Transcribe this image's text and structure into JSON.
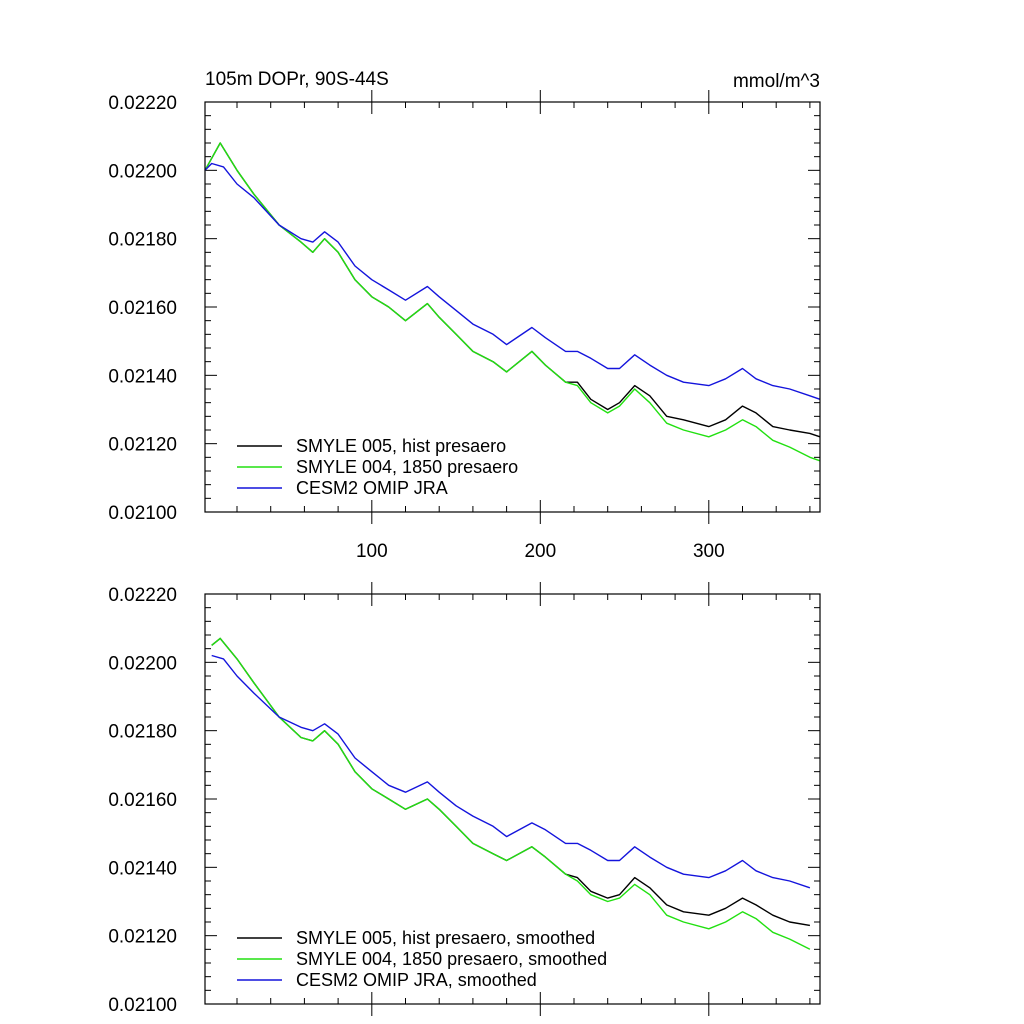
{
  "chart_data": [
    {
      "type": "line",
      "title": "105m DOPr, 90S-44S",
      "units": "mmol/m^3",
      "ylim": [
        0.021,
        0.0222
      ],
      "xlim": [
        1,
        366
      ],
      "yticks": [
        "0.02100",
        "0.02120",
        "0.02140",
        "0.02160",
        "0.02180",
        "0.02200",
        "0.02220"
      ],
      "xticks": [
        "100",
        "200",
        "300"
      ],
      "legend_position": "lower-left",
      "series": [
        {
          "name": "SMYLE 005, hist presaero",
          "color": "#000000",
          "points": [
            [
              1,
              0.022
            ],
            [
              10,
              0.02208
            ],
            [
              20,
              0.022
            ],
            [
              30,
              0.02193
            ],
            [
              45,
              0.02184
            ],
            [
              58,
              0.02179
            ],
            [
              65,
              0.02176
            ],
            [
              72,
              0.0218
            ],
            [
              80,
              0.02176
            ],
            [
              90,
              0.02168
            ],
            [
              100,
              0.02163
            ],
            [
              110,
              0.0216
            ],
            [
              120,
              0.02156
            ],
            [
              133,
              0.02161
            ],
            [
              140,
              0.02157
            ],
            [
              150,
              0.02152
            ],
            [
              160,
              0.02147
            ],
            [
              172,
              0.02144
            ],
            [
              180,
              0.02141
            ],
            [
              195,
              0.02147
            ],
            [
              203,
              0.02143
            ],
            [
              215,
              0.02138
            ],
            [
              222,
              0.02138
            ],
            [
              230,
              0.02133
            ],
            [
              240,
              0.0213
            ],
            [
              247,
              0.02132
            ],
            [
              256,
              0.02137
            ],
            [
              265,
              0.02134
            ],
            [
              275,
              0.02128
            ],
            [
              285,
              0.02127
            ],
            [
              300,
              0.02125
            ],
            [
              310,
              0.02127
            ],
            [
              320,
              0.02131
            ],
            [
              328,
              0.02129
            ],
            [
              338,
              0.02125
            ],
            [
              348,
              0.02124
            ],
            [
              360,
              0.02123
            ],
            [
              366,
              0.02122
            ]
          ]
        },
        {
          "name": "SMYLE 004, 1850 presaero",
          "color": "#22e011",
          "points": [
            [
              1,
              0.022
            ],
            [
              10,
              0.02208
            ],
            [
              20,
              0.022
            ],
            [
              30,
              0.02193
            ],
            [
              45,
              0.02184
            ],
            [
              58,
              0.02179
            ],
            [
              65,
              0.02176
            ],
            [
              72,
              0.0218
            ],
            [
              80,
              0.02176
            ],
            [
              90,
              0.02168
            ],
            [
              100,
              0.02163
            ],
            [
              110,
              0.0216
            ],
            [
              120,
              0.02156
            ],
            [
              133,
              0.02161
            ],
            [
              140,
              0.02157
            ],
            [
              150,
              0.02152
            ],
            [
              160,
              0.02147
            ],
            [
              172,
              0.02144
            ],
            [
              180,
              0.02141
            ],
            [
              195,
              0.02147
            ],
            [
              203,
              0.02143
            ],
            [
              215,
              0.02138
            ],
            [
              222,
              0.02137
            ],
            [
              230,
              0.02132
            ],
            [
              240,
              0.02129
            ],
            [
              247,
              0.02131
            ],
            [
              256,
              0.02136
            ],
            [
              265,
              0.02132
            ],
            [
              275,
              0.02126
            ],
            [
              285,
              0.02124
            ],
            [
              300,
              0.02122
            ],
            [
              310,
              0.02124
            ],
            [
              320,
              0.02127
            ],
            [
              328,
              0.02125
            ],
            [
              338,
              0.02121
            ],
            [
              348,
              0.02119
            ],
            [
              360,
              0.02116
            ],
            [
              366,
              0.02115
            ]
          ]
        },
        {
          "name": "CESM2 OMIP JRA",
          "color": "#1414dc",
          "points": [
            [
              1,
              0.022
            ],
            [
              5,
              0.02202
            ],
            [
              12,
              0.02201
            ],
            [
              20,
              0.02196
            ],
            [
              30,
              0.02192
            ],
            [
              45,
              0.02184
            ],
            [
              58,
              0.0218
            ],
            [
              65,
              0.02179
            ],
            [
              72,
              0.02182
            ],
            [
              80,
              0.02179
            ],
            [
              90,
              0.02172
            ],
            [
              100,
              0.02168
            ],
            [
              110,
              0.02165
            ],
            [
              120,
              0.02162
            ],
            [
              133,
              0.02166
            ],
            [
              140,
              0.02163
            ],
            [
              150,
              0.02159
            ],
            [
              160,
              0.02155
            ],
            [
              172,
              0.02152
            ],
            [
              180,
              0.02149
            ],
            [
              195,
              0.02154
            ],
            [
              203,
              0.02151
            ],
            [
              215,
              0.02147
            ],
            [
              222,
              0.02147
            ],
            [
              230,
              0.02145
            ],
            [
              240,
              0.02142
            ],
            [
              247,
              0.02142
            ],
            [
              256,
              0.02146
            ],
            [
              265,
              0.02143
            ],
            [
              275,
              0.0214
            ],
            [
              285,
              0.02138
            ],
            [
              300,
              0.02137
            ],
            [
              310,
              0.02139
            ],
            [
              320,
              0.02142
            ],
            [
              328,
              0.02139
            ],
            [
              338,
              0.02137
            ],
            [
              348,
              0.02136
            ],
            [
              360,
              0.02134
            ],
            [
              366,
              0.02133
            ]
          ]
        }
      ]
    },
    {
      "type": "line",
      "ylim": [
        0.021,
        0.0222
      ],
      "xlim": [
        1,
        366
      ],
      "yticks": [
        "0.02100",
        "0.02120",
        "0.02140",
        "0.02160",
        "0.02180",
        "0.02200",
        "0.02220"
      ],
      "legend_position": "lower-left",
      "series": [
        {
          "name": "SMYLE 005, hist presaero, smoothed",
          "color": "#000000",
          "points": [
            [
              5,
              0.02205
            ],
            [
              10,
              0.02207
            ],
            [
              20,
              0.02201
            ],
            [
              30,
              0.02194
            ],
            [
              45,
              0.02184
            ],
            [
              58,
              0.02178
            ],
            [
              65,
              0.02177
            ],
            [
              72,
              0.0218
            ],
            [
              80,
              0.02176
            ],
            [
              90,
              0.02168
            ],
            [
              100,
              0.02163
            ],
            [
              110,
              0.0216
            ],
            [
              120,
              0.02157
            ],
            [
              133,
              0.0216
            ],
            [
              140,
              0.02157
            ],
            [
              150,
              0.02152
            ],
            [
              160,
              0.02147
            ],
            [
              172,
              0.02144
            ],
            [
              180,
              0.02142
            ],
            [
              195,
              0.02146
            ],
            [
              203,
              0.02143
            ],
            [
              215,
              0.02138
            ],
            [
              222,
              0.02137
            ],
            [
              230,
              0.02133
            ],
            [
              240,
              0.02131
            ],
            [
              247,
              0.02132
            ],
            [
              256,
              0.02137
            ],
            [
              265,
              0.02134
            ],
            [
              275,
              0.02129
            ],
            [
              285,
              0.02127
            ],
            [
              300,
              0.02126
            ],
            [
              310,
              0.02128
            ],
            [
              320,
              0.02131
            ],
            [
              328,
              0.02129
            ],
            [
              338,
              0.02126
            ],
            [
              348,
              0.02124
            ],
            [
              360,
              0.02123
            ]
          ]
        },
        {
          "name": "SMYLE 004, 1850 presaero, smoothed",
          "color": "#22e011",
          "points": [
            [
              5,
              0.02205
            ],
            [
              10,
              0.02207
            ],
            [
              20,
              0.02201
            ],
            [
              30,
              0.02194
            ],
            [
              45,
              0.02184
            ],
            [
              58,
              0.02178
            ],
            [
              65,
              0.02177
            ],
            [
              72,
              0.0218
            ],
            [
              80,
              0.02176
            ],
            [
              90,
              0.02168
            ],
            [
              100,
              0.02163
            ],
            [
              110,
              0.0216
            ],
            [
              120,
              0.02157
            ],
            [
              133,
              0.0216
            ],
            [
              140,
              0.02157
            ],
            [
              150,
              0.02152
            ],
            [
              160,
              0.02147
            ],
            [
              172,
              0.02144
            ],
            [
              180,
              0.02142
            ],
            [
              195,
              0.02146
            ],
            [
              203,
              0.02143
            ],
            [
              215,
              0.02138
            ],
            [
              222,
              0.02136
            ],
            [
              230,
              0.02132
            ],
            [
              240,
              0.0213
            ],
            [
              247,
              0.02131
            ],
            [
              256,
              0.02135
            ],
            [
              265,
              0.02132
            ],
            [
              275,
              0.02126
            ],
            [
              285,
              0.02124
            ],
            [
              300,
              0.02122
            ],
            [
              310,
              0.02124
            ],
            [
              320,
              0.02127
            ],
            [
              328,
              0.02125
            ],
            [
              338,
              0.02121
            ],
            [
              348,
              0.02119
            ],
            [
              360,
              0.02116
            ]
          ]
        },
        {
          "name": "CESM2 OMIP JRA, smoothed",
          "color": "#1414dc",
          "points": [
            [
              5,
              0.02202
            ],
            [
              12,
              0.02201
            ],
            [
              20,
              0.02196
            ],
            [
              30,
              0.02191
            ],
            [
              45,
              0.02184
            ],
            [
              58,
              0.02181
            ],
            [
              65,
              0.0218
            ],
            [
              72,
              0.02182
            ],
            [
              80,
              0.02179
            ],
            [
              90,
              0.02172
            ],
            [
              100,
              0.02168
            ],
            [
              110,
              0.02164
            ],
            [
              120,
              0.02162
            ],
            [
              133,
              0.02165
            ],
            [
              140,
              0.02162
            ],
            [
              150,
              0.02158
            ],
            [
              160,
              0.02155
            ],
            [
              172,
              0.02152
            ],
            [
              180,
              0.02149
            ],
            [
              195,
              0.02153
            ],
            [
              203,
              0.02151
            ],
            [
              215,
              0.02147
            ],
            [
              222,
              0.02147
            ],
            [
              230,
              0.02145
            ],
            [
              240,
              0.02142
            ],
            [
              247,
              0.02142
            ],
            [
              256,
              0.02146
            ],
            [
              265,
              0.02143
            ],
            [
              275,
              0.0214
            ],
            [
              285,
              0.02138
            ],
            [
              300,
              0.02137
            ],
            [
              310,
              0.02139
            ],
            [
              320,
              0.02142
            ],
            [
              328,
              0.02139
            ],
            [
              338,
              0.02137
            ],
            [
              348,
              0.02136
            ],
            [
              360,
              0.02134
            ]
          ]
        }
      ]
    }
  ]
}
